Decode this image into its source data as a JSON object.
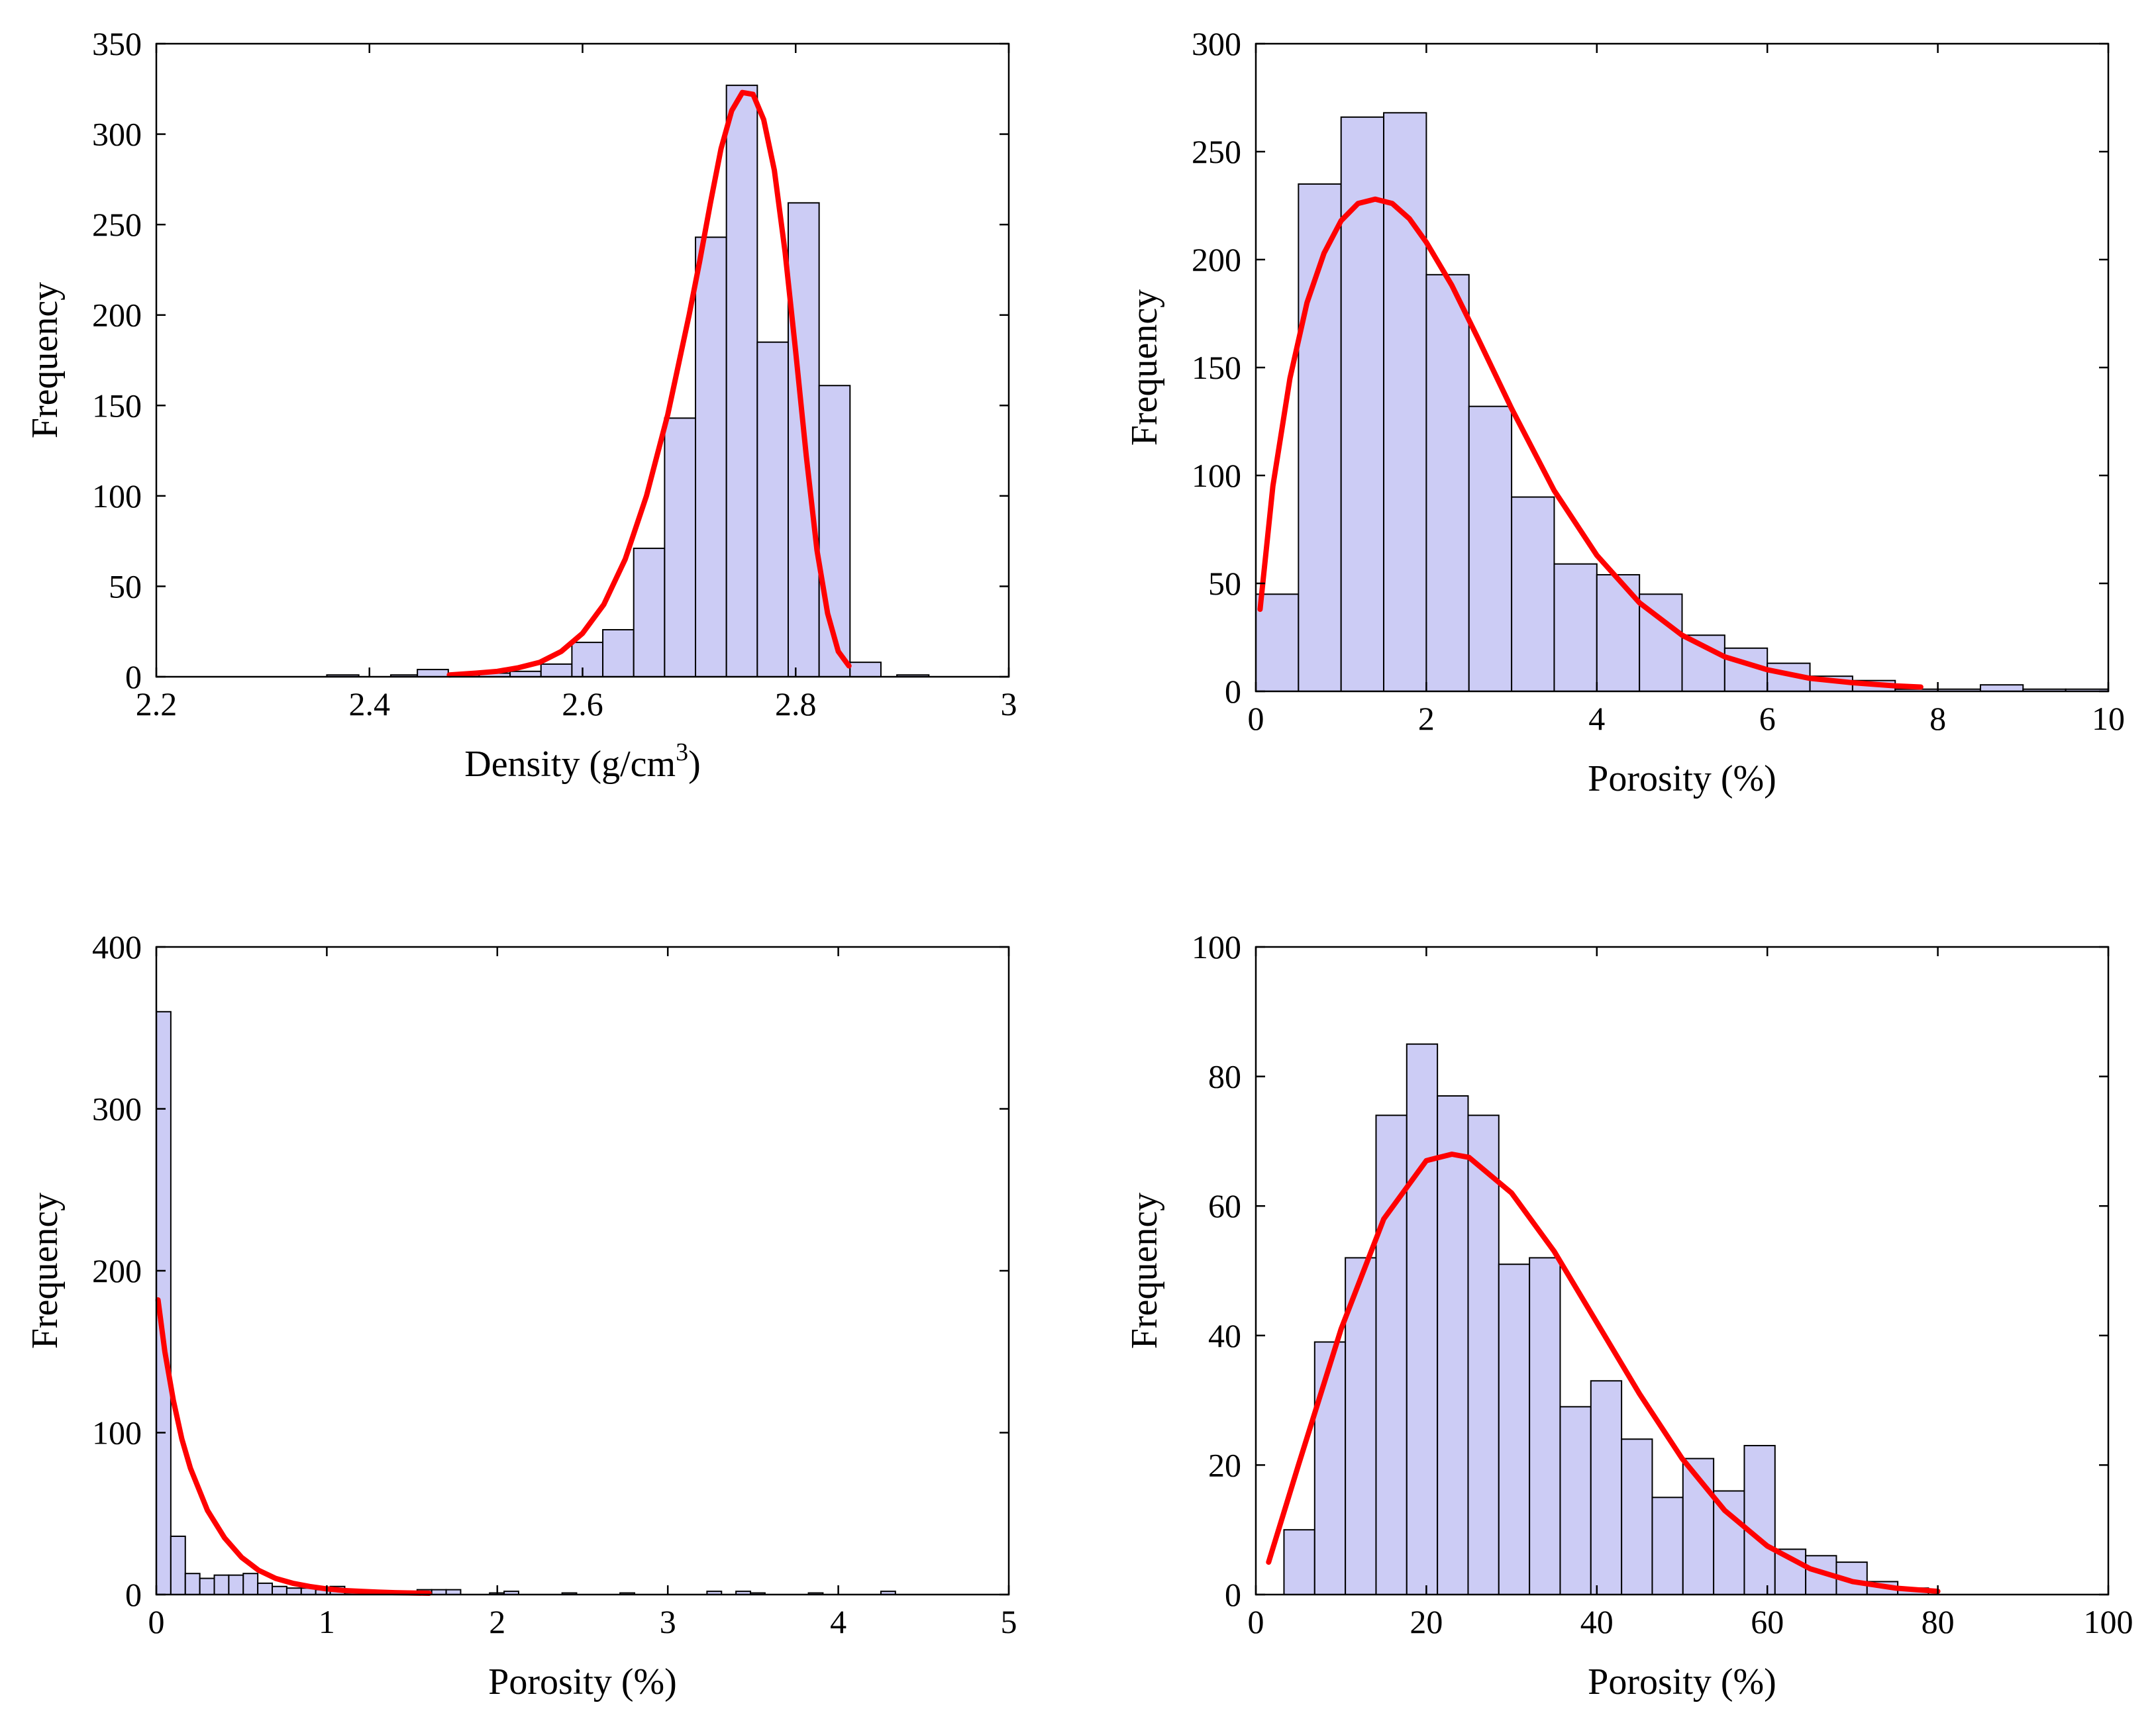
{
  "chart_data": [
    {
      "id": "density",
      "type": "bar",
      "subtype": "histogram",
      "title": "",
      "xlabel": "Density (g/cm",
      "xlabel_superscript": "3",
      "xlabel_suffix": ")",
      "ylabel": "Frequency",
      "xlim": [
        2.2,
        3
      ],
      "ylim": [
        0,
        350
      ],
      "xticks": [
        2.2,
        2.4,
        2.6,
        2.8,
        3
      ],
      "yticks": [
        0,
        50,
        100,
        150,
        200,
        250,
        300,
        350
      ],
      "xtick_labels": [
        "2.2",
        "2.4",
        "2.6",
        "2.8",
        "3"
      ],
      "ytick_labels": [
        "0",
        "50",
        "100",
        "150",
        "200",
        "250",
        "300",
        "350"
      ],
      "bins": [
        {
          "x0": 2.36,
          "x1": 2.39,
          "count": 1
        },
        {
          "x0": 2.42,
          "x1": 2.445,
          "count": 1
        },
        {
          "x0": 2.445,
          "x1": 2.474,
          "count": 4
        },
        {
          "x0": 2.474,
          "x1": 2.503,
          "count": 1
        },
        {
          "x0": 2.503,
          "x1": 2.532,
          "count": 2
        },
        {
          "x0": 2.532,
          "x1": 2.561,
          "count": 3
        },
        {
          "x0": 2.561,
          "x1": 2.59,
          "count": 7
        },
        {
          "x0": 2.59,
          "x1": 2.619,
          "count": 19
        },
        {
          "x0": 2.619,
          "x1": 2.648,
          "count": 26
        },
        {
          "x0": 2.648,
          "x1": 2.677,
          "count": 71
        },
        {
          "x0": 2.677,
          "x1": 2.706,
          "count": 143
        },
        {
          "x0": 2.706,
          "x1": 2.735,
          "count": 243
        },
        {
          "x0": 2.735,
          "x1": 2.764,
          "count": 327
        },
        {
          "x0": 2.764,
          "x1": 2.793,
          "count": 185
        },
        {
          "x0": 2.793,
          "x1": 2.822,
          "count": 262
        },
        {
          "x0": 2.822,
          "x1": 2.851,
          "count": 161
        },
        {
          "x0": 2.851,
          "x1": 2.88,
          "count": 8
        },
        {
          "x0": 2.895,
          "x1": 2.925,
          "count": 1
        }
      ],
      "fit_curve": {
        "name": "",
        "x": [
          2.475,
          2.5,
          2.52,
          2.54,
          2.56,
          2.58,
          2.6,
          2.62,
          2.64,
          2.66,
          2.68,
          2.7,
          2.71,
          2.72,
          2.73,
          2.74,
          2.75,
          2.76,
          2.77,
          2.78,
          2.79,
          2.8,
          2.81,
          2.82,
          2.83,
          2.84,
          2.85
        ],
        "y": [
          1,
          2,
          3,
          5,
          8,
          14,
          24,
          40,
          65,
          100,
          145,
          200,
          230,
          262,
          292,
          313,
          323,
          322,
          308,
          280,
          235,
          180,
          122,
          70,
          35,
          14,
          6
        ]
      },
      "bar_color": "#ccccf5",
      "curve_color": "#ff0000"
    },
    {
      "id": "porosity-a",
      "type": "bar",
      "subtype": "histogram",
      "title": "",
      "xlabel": "Porosity (%)",
      "ylabel": "Frequency",
      "xlim": [
        0,
        10
      ],
      "ylim": [
        0,
        300
      ],
      "xticks": [
        0,
        2,
        4,
        6,
        8,
        10
      ],
      "yticks": [
        0,
        50,
        100,
        150,
        200,
        250,
        300
      ],
      "xtick_labels": [
        "0",
        "2",
        "4",
        "6",
        "8",
        "10"
      ],
      "ytick_labels": [
        "0",
        "50",
        "100",
        "150",
        "200",
        "250",
        "300"
      ],
      "bins": [
        {
          "x0": 0.0,
          "x1": 0.5,
          "count": 45
        },
        {
          "x0": 0.5,
          "x1": 1.0,
          "count": 235
        },
        {
          "x0": 1.0,
          "x1": 1.5,
          "count": 266
        },
        {
          "x0": 1.5,
          "x1": 2.0,
          "count": 268
        },
        {
          "x0": 2.0,
          "x1": 2.5,
          "count": 193
        },
        {
          "x0": 2.5,
          "x1": 3.0,
          "count": 132
        },
        {
          "x0": 3.0,
          "x1": 3.5,
          "count": 90
        },
        {
          "x0": 3.5,
          "x1": 4.0,
          "count": 59
        },
        {
          "x0": 4.0,
          "x1": 4.5,
          "count": 54
        },
        {
          "x0": 4.5,
          "x1": 5.0,
          "count": 45
        },
        {
          "x0": 5.0,
          "x1": 5.5,
          "count": 26
        },
        {
          "x0": 5.5,
          "x1": 6.0,
          "count": 20
        },
        {
          "x0": 6.0,
          "x1": 6.5,
          "count": 13
        },
        {
          "x0": 6.5,
          "x1": 7.0,
          "count": 7
        },
        {
          "x0": 7.0,
          "x1": 7.5,
          "count": 5
        },
        {
          "x0": 7.5,
          "x1": 8.0,
          "count": 1
        },
        {
          "x0": 8.0,
          "x1": 8.5,
          "count": 1
        },
        {
          "x0": 8.5,
          "x1": 9.0,
          "count": 3
        },
        {
          "x0": 9.0,
          "x1": 9.5,
          "count": 1
        },
        {
          "x0": 9.5,
          "x1": 10.0,
          "count": 1
        }
      ],
      "fit_curve": {
        "name": "",
        "x": [
          0.05,
          0.2,
          0.4,
          0.6,
          0.8,
          1.0,
          1.2,
          1.4,
          1.6,
          1.8,
          2.0,
          2.3,
          2.6,
          3.0,
          3.5,
          4.0,
          4.5,
          5.0,
          5.5,
          6.0,
          6.5,
          7.0,
          7.5,
          7.8
        ],
        "y": [
          38,
          95,
          145,
          180,
          203,
          218,
          226,
          228,
          226,
          219,
          208,
          188,
          164,
          131,
          93,
          63,
          41,
          26,
          16,
          10,
          6,
          4,
          2.5,
          2
        ]
      },
      "bar_color": "#ccccf5",
      "curve_color": "#ff0000"
    },
    {
      "id": "porosity-b",
      "type": "bar",
      "subtype": "histogram",
      "title": "",
      "xlabel": "Porosity (%)",
      "ylabel": "Frequency",
      "xlim": [
        0,
        5
      ],
      "ylim": [
        0,
        400
      ],
      "xticks": [
        0,
        1,
        2,
        3,
        4,
        5
      ],
      "yticks": [
        0,
        100,
        200,
        300,
        400
      ],
      "xtick_labels": [
        "0",
        "1",
        "2",
        "3",
        "4",
        "5"
      ],
      "ytick_labels": [
        "0",
        "100",
        "200",
        "300",
        "400"
      ],
      "bins": [
        {
          "x0": 0.0,
          "x1": 0.085,
          "count": 360
        },
        {
          "x0": 0.085,
          "x1": 0.17,
          "count": 36
        },
        {
          "x0": 0.17,
          "x1": 0.255,
          "count": 13
        },
        {
          "x0": 0.255,
          "x1": 0.34,
          "count": 10
        },
        {
          "x0": 0.34,
          "x1": 0.425,
          "count": 12
        },
        {
          "x0": 0.425,
          "x1": 0.51,
          "count": 12
        },
        {
          "x0": 0.51,
          "x1": 0.595,
          "count": 13
        },
        {
          "x0": 0.595,
          "x1": 0.68,
          "count": 7
        },
        {
          "x0": 0.68,
          "x1": 0.765,
          "count": 5
        },
        {
          "x0": 0.765,
          "x1": 0.85,
          "count": 4
        },
        {
          "x0": 0.85,
          "x1": 0.935,
          "count": 4
        },
        {
          "x0": 0.935,
          "x1": 1.02,
          "count": 3
        },
        {
          "x0": 1.02,
          "x1": 1.105,
          "count": 5
        },
        {
          "x0": 1.105,
          "x1": 1.19,
          "count": 1
        },
        {
          "x0": 1.53,
          "x1": 1.615,
          "count": 3
        },
        {
          "x0": 1.615,
          "x1": 1.7,
          "count": 3
        },
        {
          "x0": 1.7,
          "x1": 1.785,
          "count": 3
        },
        {
          "x0": 1.955,
          "x1": 2.04,
          "count": 1
        },
        {
          "x0": 2.04,
          "x1": 2.125,
          "count": 2
        },
        {
          "x0": 2.38,
          "x1": 2.465,
          "count": 1
        },
        {
          "x0": 2.72,
          "x1": 2.805,
          "count": 1
        },
        {
          "x0": 3.23,
          "x1": 3.315,
          "count": 2
        },
        {
          "x0": 3.4,
          "x1": 3.485,
          "count": 2
        },
        {
          "x0": 3.485,
          "x1": 3.57,
          "count": 1
        },
        {
          "x0": 3.825,
          "x1": 3.91,
          "count": 1
        },
        {
          "x0": 4.25,
          "x1": 4.335,
          "count": 2
        }
      ],
      "fit_curve": {
        "name": "",
        "x": [
          0.01,
          0.05,
          0.1,
          0.15,
          0.2,
          0.3,
          0.4,
          0.5,
          0.6,
          0.7,
          0.8,
          0.9,
          1.0,
          1.1,
          1.2,
          1.3,
          1.4,
          1.5,
          1.6
        ],
        "y": [
          182,
          150,
          120,
          96,
          78,
          52,
          35,
          23,
          15,
          10,
          7,
          5,
          3.5,
          2.5,
          2,
          1.5,
          1.2,
          1,
          0.8
        ]
      },
      "bar_color": "#ccccf5",
      "curve_color": "#ff0000"
    },
    {
      "id": "porosity-c",
      "type": "bar",
      "subtype": "histogram",
      "title": "",
      "xlabel": "Porosity (%)",
      "ylabel": "Frequency",
      "xlim": [
        0,
        100
      ],
      "ylim": [
        0,
        100
      ],
      "xticks": [
        0,
        20,
        40,
        60,
        80,
        100
      ],
      "yticks": [
        0,
        20,
        40,
        60,
        80,
        100
      ],
      "xtick_labels": [
        "0",
        "20",
        "40",
        "60",
        "80",
        "100"
      ],
      "ytick_labels": [
        "0",
        "20",
        "40",
        "60",
        "80",
        "100"
      ],
      "bins": [
        {
          "x0": 3.3,
          "x1": 6.9,
          "count": 10
        },
        {
          "x0": 6.9,
          "x1": 10.5,
          "count": 39
        },
        {
          "x0": 10.5,
          "x1": 14.1,
          "count": 52
        },
        {
          "x0": 14.1,
          "x1": 17.7,
          "count": 74
        },
        {
          "x0": 17.7,
          "x1": 21.3,
          "count": 85
        },
        {
          "x0": 21.3,
          "x1": 24.9,
          "count": 77
        },
        {
          "x0": 24.9,
          "x1": 28.5,
          "count": 74
        },
        {
          "x0": 28.5,
          "x1": 32.1,
          "count": 51
        },
        {
          "x0": 32.1,
          "x1": 35.7,
          "count": 52
        },
        {
          "x0": 35.7,
          "x1": 39.3,
          "count": 29
        },
        {
          "x0": 39.3,
          "x1": 42.9,
          "count": 33
        },
        {
          "x0": 42.9,
          "x1": 46.5,
          "count": 24
        },
        {
          "x0": 46.5,
          "x1": 50.1,
          "count": 15
        },
        {
          "x0": 50.1,
          "x1": 53.7,
          "count": 21
        },
        {
          "x0": 53.7,
          "x1": 57.3,
          "count": 16
        },
        {
          "x0": 57.3,
          "x1": 60.9,
          "count": 23
        },
        {
          "x0": 60.9,
          "x1": 64.5,
          "count": 7
        },
        {
          "x0": 64.5,
          "x1": 68.1,
          "count": 6
        },
        {
          "x0": 68.1,
          "x1": 71.7,
          "count": 5
        },
        {
          "x0": 71.7,
          "x1": 75.3,
          "count": 2
        },
        {
          "x0": 75.3,
          "x1": 78.9,
          "count": 1
        }
      ],
      "fit_curve": {
        "name": "",
        "x": [
          1.5,
          5,
          10,
          15,
          20,
          23,
          25,
          30,
          35,
          40,
          45,
          50,
          55,
          60,
          65,
          70,
          75,
          80
        ],
        "y": [
          5,
          20,
          41,
          58,
          67,
          68,
          67.5,
          62,
          53,
          42,
          31,
          21,
          13,
          7.5,
          4,
          2,
          1,
          0.5
        ]
      },
      "bar_color": "#ccccf5",
      "curve_color": "#ff0000"
    }
  ]
}
